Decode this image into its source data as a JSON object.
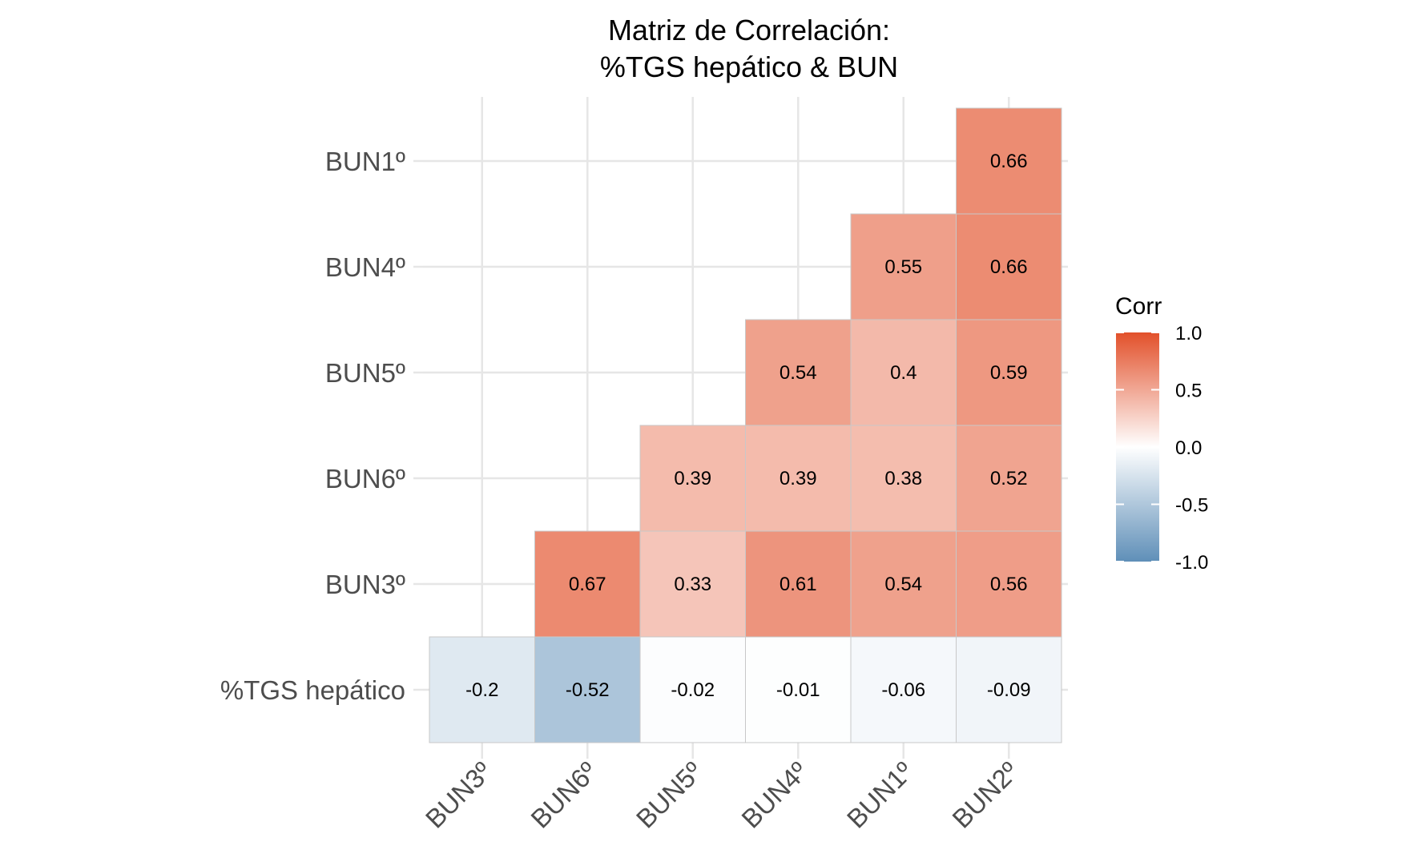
{
  "chart_data": {
    "type": "heatmap",
    "title_lines": [
      "Matriz de Correlación:",
      "%TGS hepático & BUN"
    ],
    "x_categories": [
      "BUN3º",
      "BUN6º",
      "BUN5º",
      "BUN4º",
      "BUN1º",
      "BUN2º"
    ],
    "y_categories": [
      "%TGS hepático",
      "BUN3º",
      "BUN6º",
      "BUN5º",
      "BUN4º",
      "BUN1º"
    ],
    "cells": [
      {
        "x": "BUN3º",
        "y": "%TGS hepático",
        "value": -0.2,
        "label": "-0.2"
      },
      {
        "x": "BUN6º",
        "y": "%TGS hepático",
        "value": -0.52,
        "label": "-0.52"
      },
      {
        "x": "BUN5º",
        "y": "%TGS hepático",
        "value": -0.02,
        "label": "-0.02"
      },
      {
        "x": "BUN4º",
        "y": "%TGS hepático",
        "value": -0.01,
        "label": "-0.01"
      },
      {
        "x": "BUN1º",
        "y": "%TGS hepático",
        "value": -0.06,
        "label": "-0.06"
      },
      {
        "x": "BUN2º",
        "y": "%TGS hepático",
        "value": -0.09,
        "label": "-0.09"
      },
      {
        "x": "BUN6º",
        "y": "BUN3º",
        "value": 0.67,
        "label": "0.67"
      },
      {
        "x": "BUN5º",
        "y": "BUN3º",
        "value": 0.33,
        "label": "0.33"
      },
      {
        "x": "BUN4º",
        "y": "BUN3º",
        "value": 0.61,
        "label": "0.61"
      },
      {
        "x": "BUN1º",
        "y": "BUN3º",
        "value": 0.54,
        "label": "0.54"
      },
      {
        "x": "BUN2º",
        "y": "BUN3º",
        "value": 0.56,
        "label": "0.56"
      },
      {
        "x": "BUN5º",
        "y": "BUN6º",
        "value": 0.39,
        "label": "0.39"
      },
      {
        "x": "BUN4º",
        "y": "BUN6º",
        "value": 0.39,
        "label": "0.39"
      },
      {
        "x": "BUN1º",
        "y": "BUN6º",
        "value": 0.38,
        "label": "0.38"
      },
      {
        "x": "BUN2º",
        "y": "BUN6º",
        "value": 0.52,
        "label": "0.52"
      },
      {
        "x": "BUN4º",
        "y": "BUN5º",
        "value": 0.54,
        "label": "0.54"
      },
      {
        "x": "BUN1º",
        "y": "BUN5º",
        "value": 0.4,
        "label": "0.4"
      },
      {
        "x": "BUN2º",
        "y": "BUN5º",
        "value": 0.59,
        "label": "0.59"
      },
      {
        "x": "BUN1º",
        "y": "BUN4º",
        "value": 0.55,
        "label": "0.55"
      },
      {
        "x": "BUN2º",
        "y": "BUN4º",
        "value": 0.66,
        "label": "0.66"
      },
      {
        "x": "BUN2º",
        "y": "BUN1º",
        "value": 0.66,
        "label": "0.66"
      }
    ],
    "color_scale": {
      "title": "Corr",
      "low": "#5f8fb8",
      "mid": "#ffffff",
      "high": "#e2502a",
      "limits": [
        -1.0,
        1.0
      ],
      "ticks": [
        {
          "value": 1.0,
          "label": "1.0"
        },
        {
          "value": 0.5,
          "label": "0.5"
        },
        {
          "value": 0.0,
          "label": "0.0"
        },
        {
          "value": -0.5,
          "label": "-0.5"
        },
        {
          "value": -1.0,
          "label": "-1.0"
        }
      ]
    },
    "grid": true,
    "legend_position": "right"
  }
}
